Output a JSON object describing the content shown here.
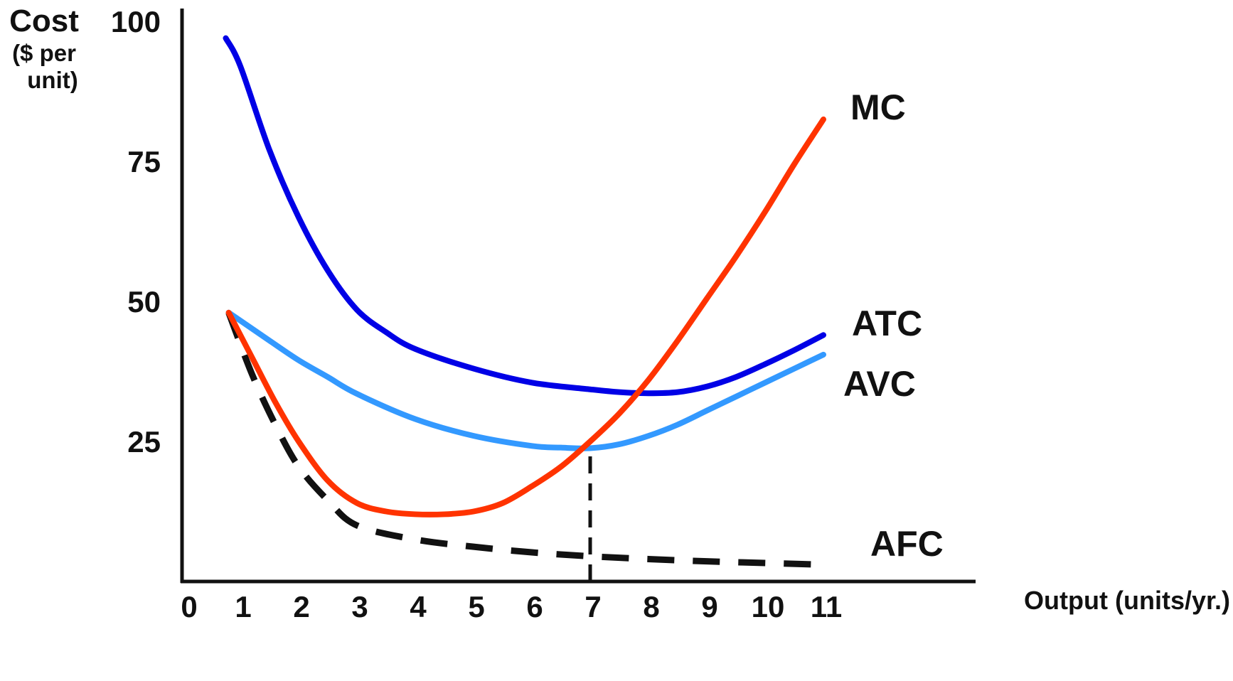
{
  "chart_data": {
    "type": "line",
    "ylabel": "Cost",
    "ylabel_sub": [
      "($ per",
      "unit)"
    ],
    "xlabel": "Output (units/yr.)",
    "xlim": [
      0,
      11
    ],
    "ylim": [
      0,
      100
    ],
    "x_ticks": [
      "0",
      "1",
      "2",
      "3",
      "4",
      "5",
      "6",
      "7",
      "8",
      "9",
      "10",
      "11"
    ],
    "y_ticks": [
      "25",
      "50",
      "75",
      "100"
    ],
    "grid": false,
    "legend": "labels at right end of each curve",
    "series": [
      {
        "name": "MC",
        "color": "#ff3300",
        "style": "solid",
        "x": [
          0.8,
          1.2,
          1.6,
          2,
          2.5,
          3,
          3.5,
          4,
          4.5,
          5,
          5.5,
          6,
          6.5,
          7,
          7.5,
          8,
          8.5,
          9,
          9.5,
          10,
          10.5,
          11
        ],
        "y": [
          48,
          40,
          32,
          25,
          18,
          14,
          12.5,
          12,
          12,
          12.5,
          14,
          17,
          20.5,
          25,
          30,
          36,
          43,
          50.5,
          58,
          66,
          74.5,
          82.5
        ]
      },
      {
        "name": "ATC",
        "color": "#0000e6",
        "style": "solid",
        "x": [
          0.75,
          1,
          1.5,
          2,
          2.5,
          3,
          3.5,
          4,
          5,
          6,
          7,
          7.5,
          8,
          8.5,
          9,
          9.5,
          10,
          10.5,
          11
        ],
        "y": [
          97,
          92,
          77,
          65,
          55.5,
          48.5,
          44.5,
          41.5,
          38,
          35.5,
          34.3,
          33.8,
          33.6,
          33.8,
          34.8,
          36.5,
          38.8,
          41.3,
          44
        ]
      },
      {
        "name": "AVC",
        "color": "#3399ff",
        "style": "solid",
        "x": [
          0.8,
          1.5,
          2,
          2.5,
          3,
          4,
          5,
          6,
          6.5,
          7,
          7.5,
          8,
          8.5,
          9,
          9.5,
          10,
          10.5,
          11
        ],
        "y": [
          48,
          43,
          39.5,
          36.5,
          33.5,
          29,
          26,
          24.2,
          23.9,
          23.8,
          24.5,
          26,
          28,
          30.5,
          33,
          35.5,
          38,
          40.5
        ]
      },
      {
        "name": "AFC",
        "color": "#111111",
        "style": "dashed",
        "x": [
          0.8,
          1.2,
          1.6,
          2,
          2.5,
          3,
          4,
          5,
          6,
          7,
          8,
          9,
          10,
          11
        ],
        "y": [
          48,
          37,
          28,
          20.5,
          14.5,
          10,
          7.5,
          6.2,
          5.2,
          4.5,
          4,
          3.6,
          3.3,
          3
        ]
      }
    ],
    "annotations": [
      {
        "type": "vertical-dashed-line",
        "x": 7,
        "from_y": 0,
        "to_y": 24
      }
    ]
  }
}
